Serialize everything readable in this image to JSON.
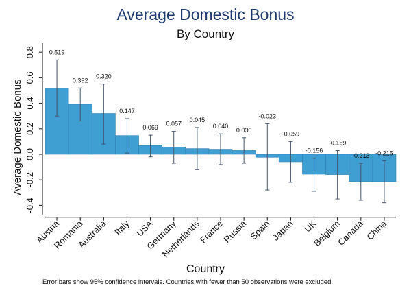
{
  "chart_data": {
    "type": "bar",
    "title": "Average Domestic Bonus",
    "subtitle": "By Country",
    "xlabel": "Country",
    "ylabel": "Average Domestic Bonus",
    "ylim": [
      -0.45,
      0.85
    ],
    "yticks": [
      "0.8",
      "0.6",
      "0.4",
      "0.2",
      "0.0",
      "-0.2",
      "-0.4"
    ],
    "ytick_values": [
      0.8,
      0.6,
      0.4,
      0.2,
      0.0,
      -0.2,
      -0.4
    ],
    "categories": [
      "Austria",
      "Romania",
      "Australia",
      "Italy",
      "USA",
      "Germany",
      "Netherlands",
      "France",
      "Russia",
      "Spain",
      "Japan",
      "UK",
      "Belgium",
      "Canada",
      "China"
    ],
    "values": [
      0.519,
      0.392,
      0.32,
      0.147,
      0.069,
      0.057,
      0.045,
      0.04,
      0.03,
      -0.023,
      -0.059,
      -0.156,
      -0.159,
      -0.213,
      -0.215
    ],
    "value_labels": [
      "0.519",
      "0.392",
      "0.320",
      "0.147",
      "0.069",
      "0.057",
      "0.045",
      "0.040",
      "0.030",
      "-0.023",
      "-0.059",
      "-0.156",
      "-0.159",
      "-0.213",
      "-0.215"
    ],
    "ci_low": [
      0.3,
      0.26,
      0.08,
      0.01,
      -0.02,
      -0.07,
      -0.12,
      -0.08,
      -0.07,
      -0.28,
      -0.22,
      -0.29,
      -0.35,
      -0.36,
      -0.38
    ],
    "ci_high": [
      0.74,
      0.52,
      0.55,
      0.28,
      0.15,
      0.18,
      0.21,
      0.16,
      0.13,
      0.24,
      0.1,
      -0.03,
      0.03,
      -0.07,
      -0.05
    ],
    "colors": {
      "bar": "#3f9fd3",
      "bar_edge": "#2f7fb0",
      "error": "#45546b",
      "axis": "#111111",
      "title": "#1f3a6e"
    }
  },
  "footnote": "Error bars show 95% confidence intervals. Countries with fewer than 50 observations were excluded."
}
